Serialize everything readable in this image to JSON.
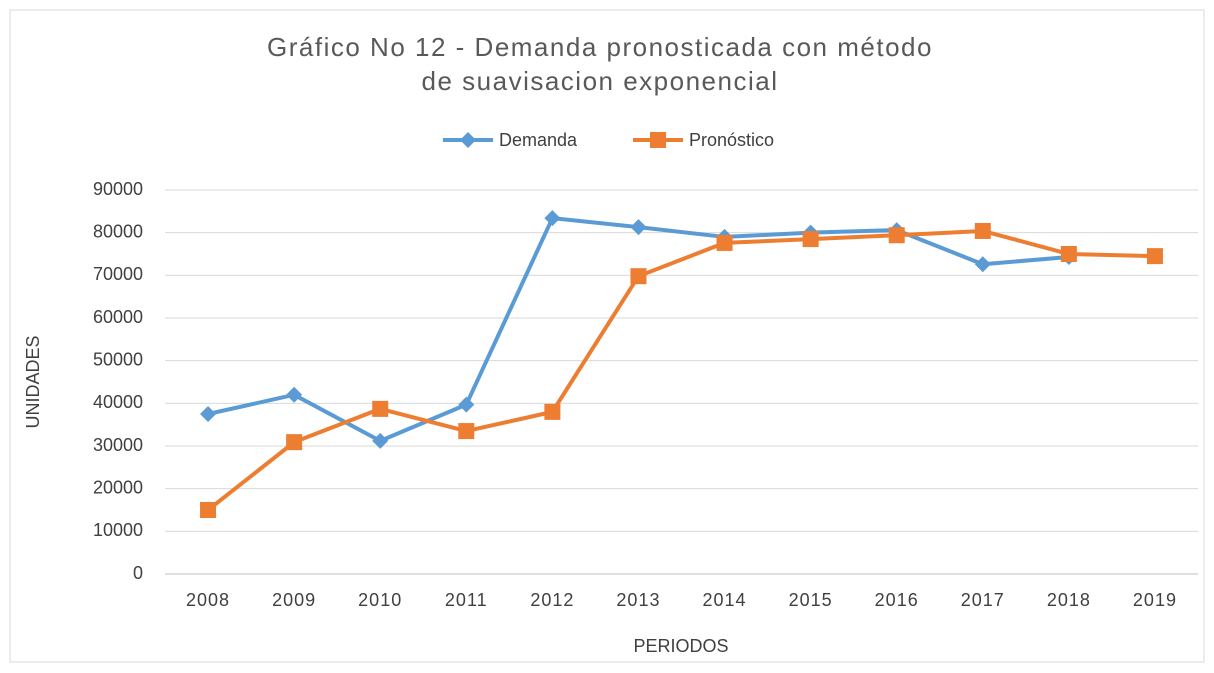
{
  "chart_data": {
    "type": "line",
    "title": "Gráfico No 12 - Demanda pronosticada con método de suavisacion exponencial",
    "x_label": "PERIODOS",
    "y_label": "UNIDADES",
    "categories": [
      "2008",
      "2009",
      "2010",
      "2011",
      "2012",
      "2013",
      "2014",
      "2015",
      "2016",
      "2017",
      "2018",
      "2019"
    ],
    "series": [
      {
        "name": "Demanda",
        "color": "#5b9bd5",
        "marker": "diamond",
        "values": [
          37500,
          42000,
          31200,
          39700,
          83400,
          81300,
          79000,
          80000,
          80600,
          72600,
          74300,
          null
        ]
      },
      {
        "name": "Pronóstico",
        "color": "#ed7d31",
        "marker": "square",
        "values": [
          15000,
          30900,
          38700,
          33500,
          38000,
          69800,
          77600,
          78500,
          79400,
          80400,
          75000,
          74500
        ]
      }
    ],
    "ylim": [
      0,
      90000
    ],
    "yticks": [
      0,
      10000,
      20000,
      30000,
      40000,
      50000,
      60000,
      70000,
      80000,
      90000
    ],
    "grid": true,
    "legend": "top"
  }
}
